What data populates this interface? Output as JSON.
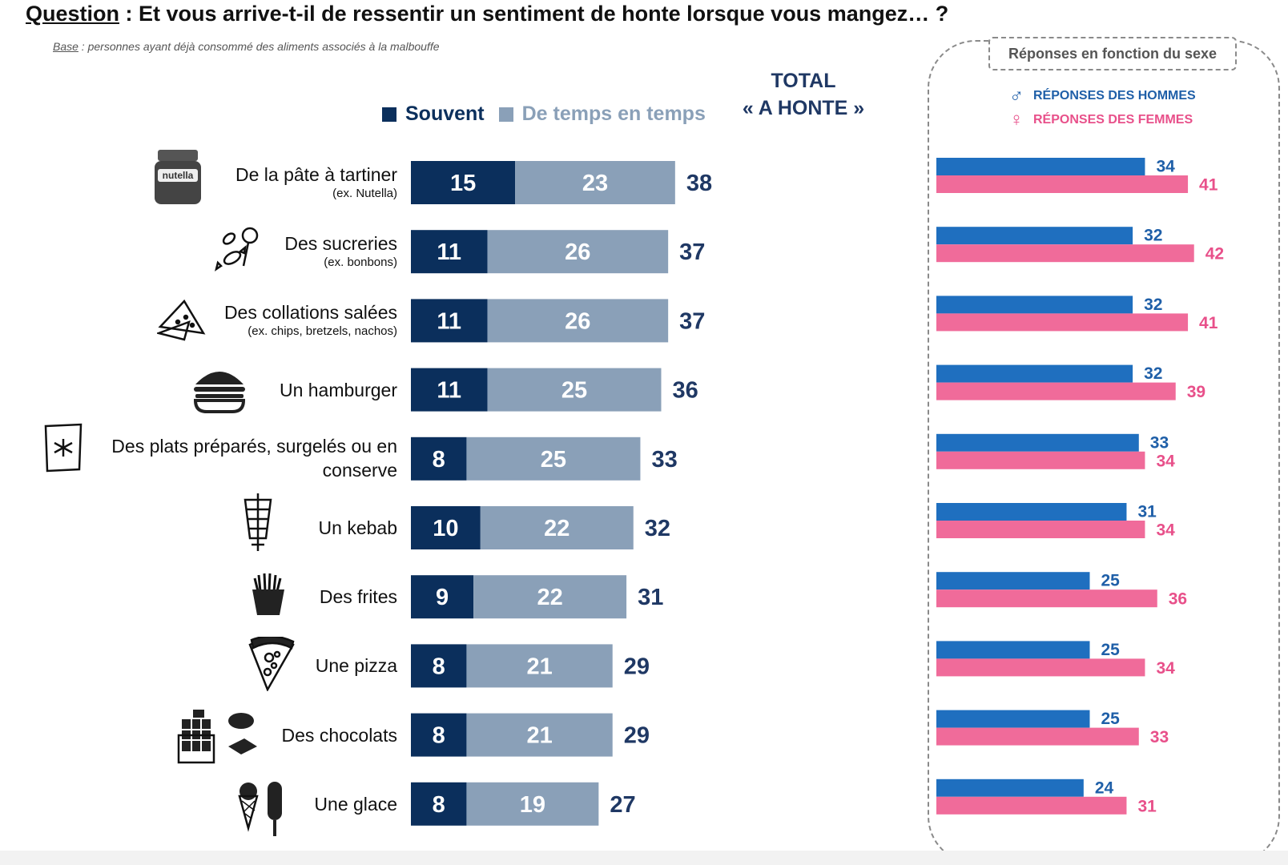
{
  "header": {
    "question_prefix": "Question",
    "question_text": " : Et vous arrive-t-il de ressentir un sentiment de honte lorsque vous mangez… ?",
    "base_prefix": "Base",
    "base_text": " : personnes ayant déjà consommé des aliments associés à la malbouffe"
  },
  "legend": {
    "souvent": "Souvent",
    "de_temps": "De temps en temps"
  },
  "total": {
    "line1": "TOTAL",
    "line2": "« A HONTE »"
  },
  "gender": {
    "box_label": "Réponses en fonction du sexe",
    "hommes": "RÉPONSES DES HOMMES",
    "femmes": "RÉPONSES DES FEMMES"
  },
  "colors": {
    "souvent": "#0b2f5c",
    "de_temps": "#8aa0b8",
    "total": "#1f3864",
    "hommes": "#1f6fbf",
    "femmes": "#f06b9a",
    "hommes_text": "#1f5fa8",
    "femmes_text": "#e8508a"
  },
  "chart_data": [
    {
      "type": "bar",
      "orientation": "horizontal",
      "stacked": true,
      "categories": [
        "De la pâte à tartiner (ex. Nutella)",
        "Des sucreries (ex. bonbons)",
        "Des collations salées (ex. chips, bretzels, nachos)",
        "Un hamburger",
        "Des plats préparés, surgelés ou en conserve",
        "Un kebab",
        "Des frites",
        "Une pizza",
        "Des chocolats",
        "Une glace"
      ],
      "series": [
        {
          "name": "Souvent",
          "values": [
            15,
            11,
            11,
            11,
            8,
            10,
            9,
            8,
            8,
            8
          ]
        },
        {
          "name": "De temps en temps",
          "values": [
            23,
            26,
            26,
            25,
            25,
            22,
            22,
            21,
            21,
            19
          ]
        }
      ],
      "totals": [
        38,
        37,
        37,
        36,
        33,
        32,
        31,
        29,
        29,
        27
      ]
    },
    {
      "type": "bar",
      "orientation": "horizontal",
      "categories": [
        "De la pâte à tartiner (ex. Nutella)",
        "Des sucreries (ex. bonbons)",
        "Des collations salées (ex. chips, bretzels, nachos)",
        "Un hamburger",
        "Des plats préparés, surgelés ou en conserve",
        "Un kebab",
        "Des frites",
        "Une pizza",
        "Des chocolats",
        "Une glace"
      ],
      "series": [
        {
          "name": "RÉPONSES DES HOMMES",
          "values": [
            34,
            32,
            32,
            32,
            33,
            31,
            25,
            25,
            25,
            24
          ]
        },
        {
          "name": "RÉPONSES DES FEMMES",
          "values": [
            41,
            42,
            41,
            39,
            34,
            34,
            36,
            34,
            33,
            31
          ]
        }
      ]
    }
  ],
  "rows": [
    {
      "label": "De la pâte à tartiner",
      "sub": "(ex. Nutella)",
      "icon": "nutella-jar-icon",
      "icon_text": "nutella"
    },
    {
      "label": "Des sucreries",
      "sub": "(ex. bonbons)",
      "icon": "candy-icon"
    },
    {
      "label": "Des collations salées",
      "sub": "(ex. chips, bretzels, nachos)",
      "icon": "nachos-icon"
    },
    {
      "label": "Un hamburger",
      "sub": "",
      "icon": "hamburger-icon"
    },
    {
      "label": "Des plats préparés, surgelés ou en",
      "label2": "conserve",
      "sub": "",
      "icon": "frozen-food-icon"
    },
    {
      "label": "Un kebab",
      "sub": "",
      "icon": "kebab-icon"
    },
    {
      "label": "Des frites",
      "sub": "",
      "icon": "fries-icon"
    },
    {
      "label": "Une pizza",
      "sub": "",
      "icon": "pizza-icon"
    },
    {
      "label": "Des chocolats",
      "sub": "",
      "icon": "chocolate-icon"
    },
    {
      "label": "Une glace",
      "sub": "",
      "icon": "ice-cream-icon"
    }
  ]
}
